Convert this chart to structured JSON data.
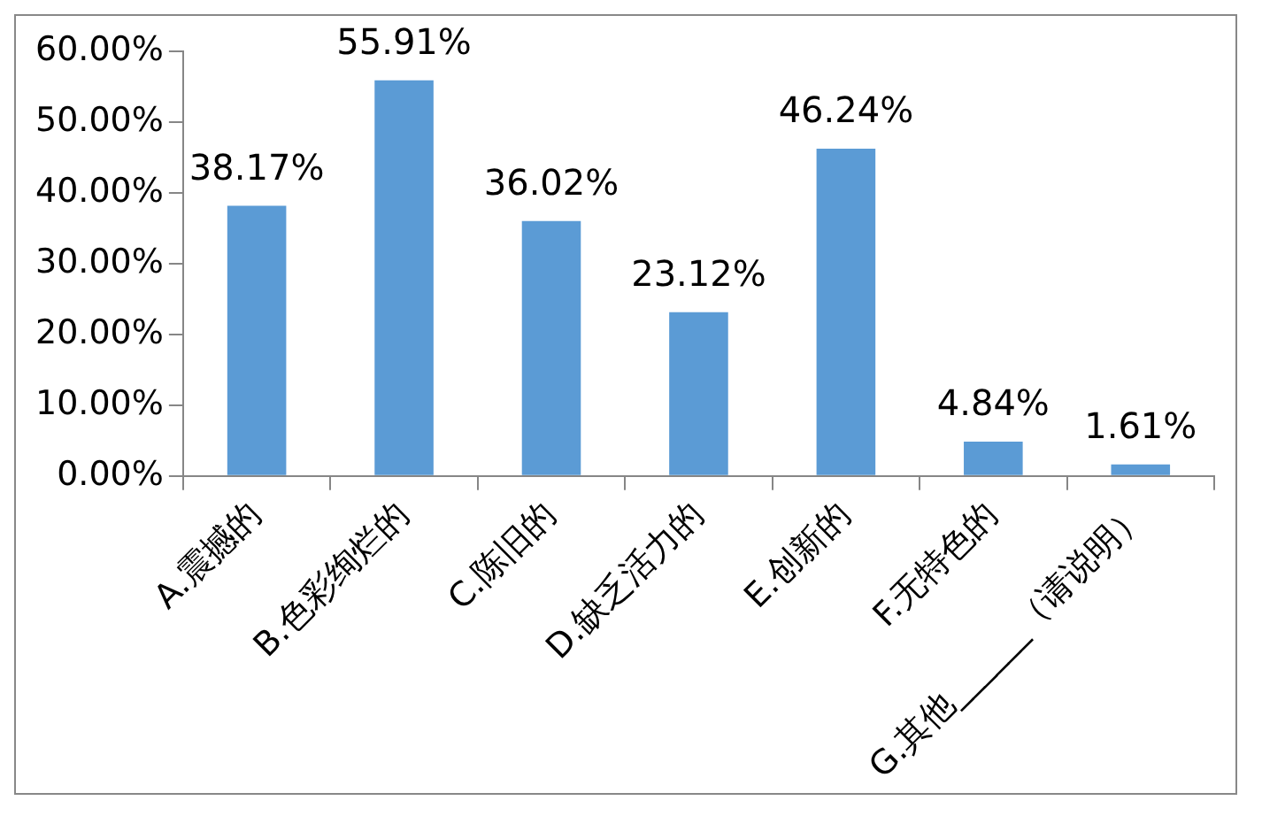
{
  "chart_data": {
    "type": "bar",
    "categories": [
      "A.震撼的",
      "B.色彩绚烂的",
      "C.陈旧的",
      "D.缺乏活力的",
      "E.创新的",
      "F.无特色的",
      "G.其他______（请说明）"
    ],
    "values": [
      38.17,
      55.91,
      36.02,
      23.12,
      46.24,
      4.84,
      1.61
    ],
    "value_labels": [
      "38.17%",
      "55.91%",
      "36.02%",
      "23.12%",
      "46.24%",
      "4.84%",
      "1.61%"
    ],
    "color": "#5b9bd5",
    "ylim": [
      0,
      60
    ],
    "yticks": [
      {
        "value": 0,
        "label": "0.00%"
      },
      {
        "value": 10,
        "label": "10.00%"
      },
      {
        "value": 20,
        "label": "20.00%"
      },
      {
        "value": 30,
        "label": "30.00%"
      },
      {
        "value": 40,
        "label": "40.00%"
      },
      {
        "value": 50,
        "label": "50.00%"
      },
      {
        "value": 60,
        "label": "60.00%"
      }
    ],
    "grid": false,
    "legend": false
  }
}
